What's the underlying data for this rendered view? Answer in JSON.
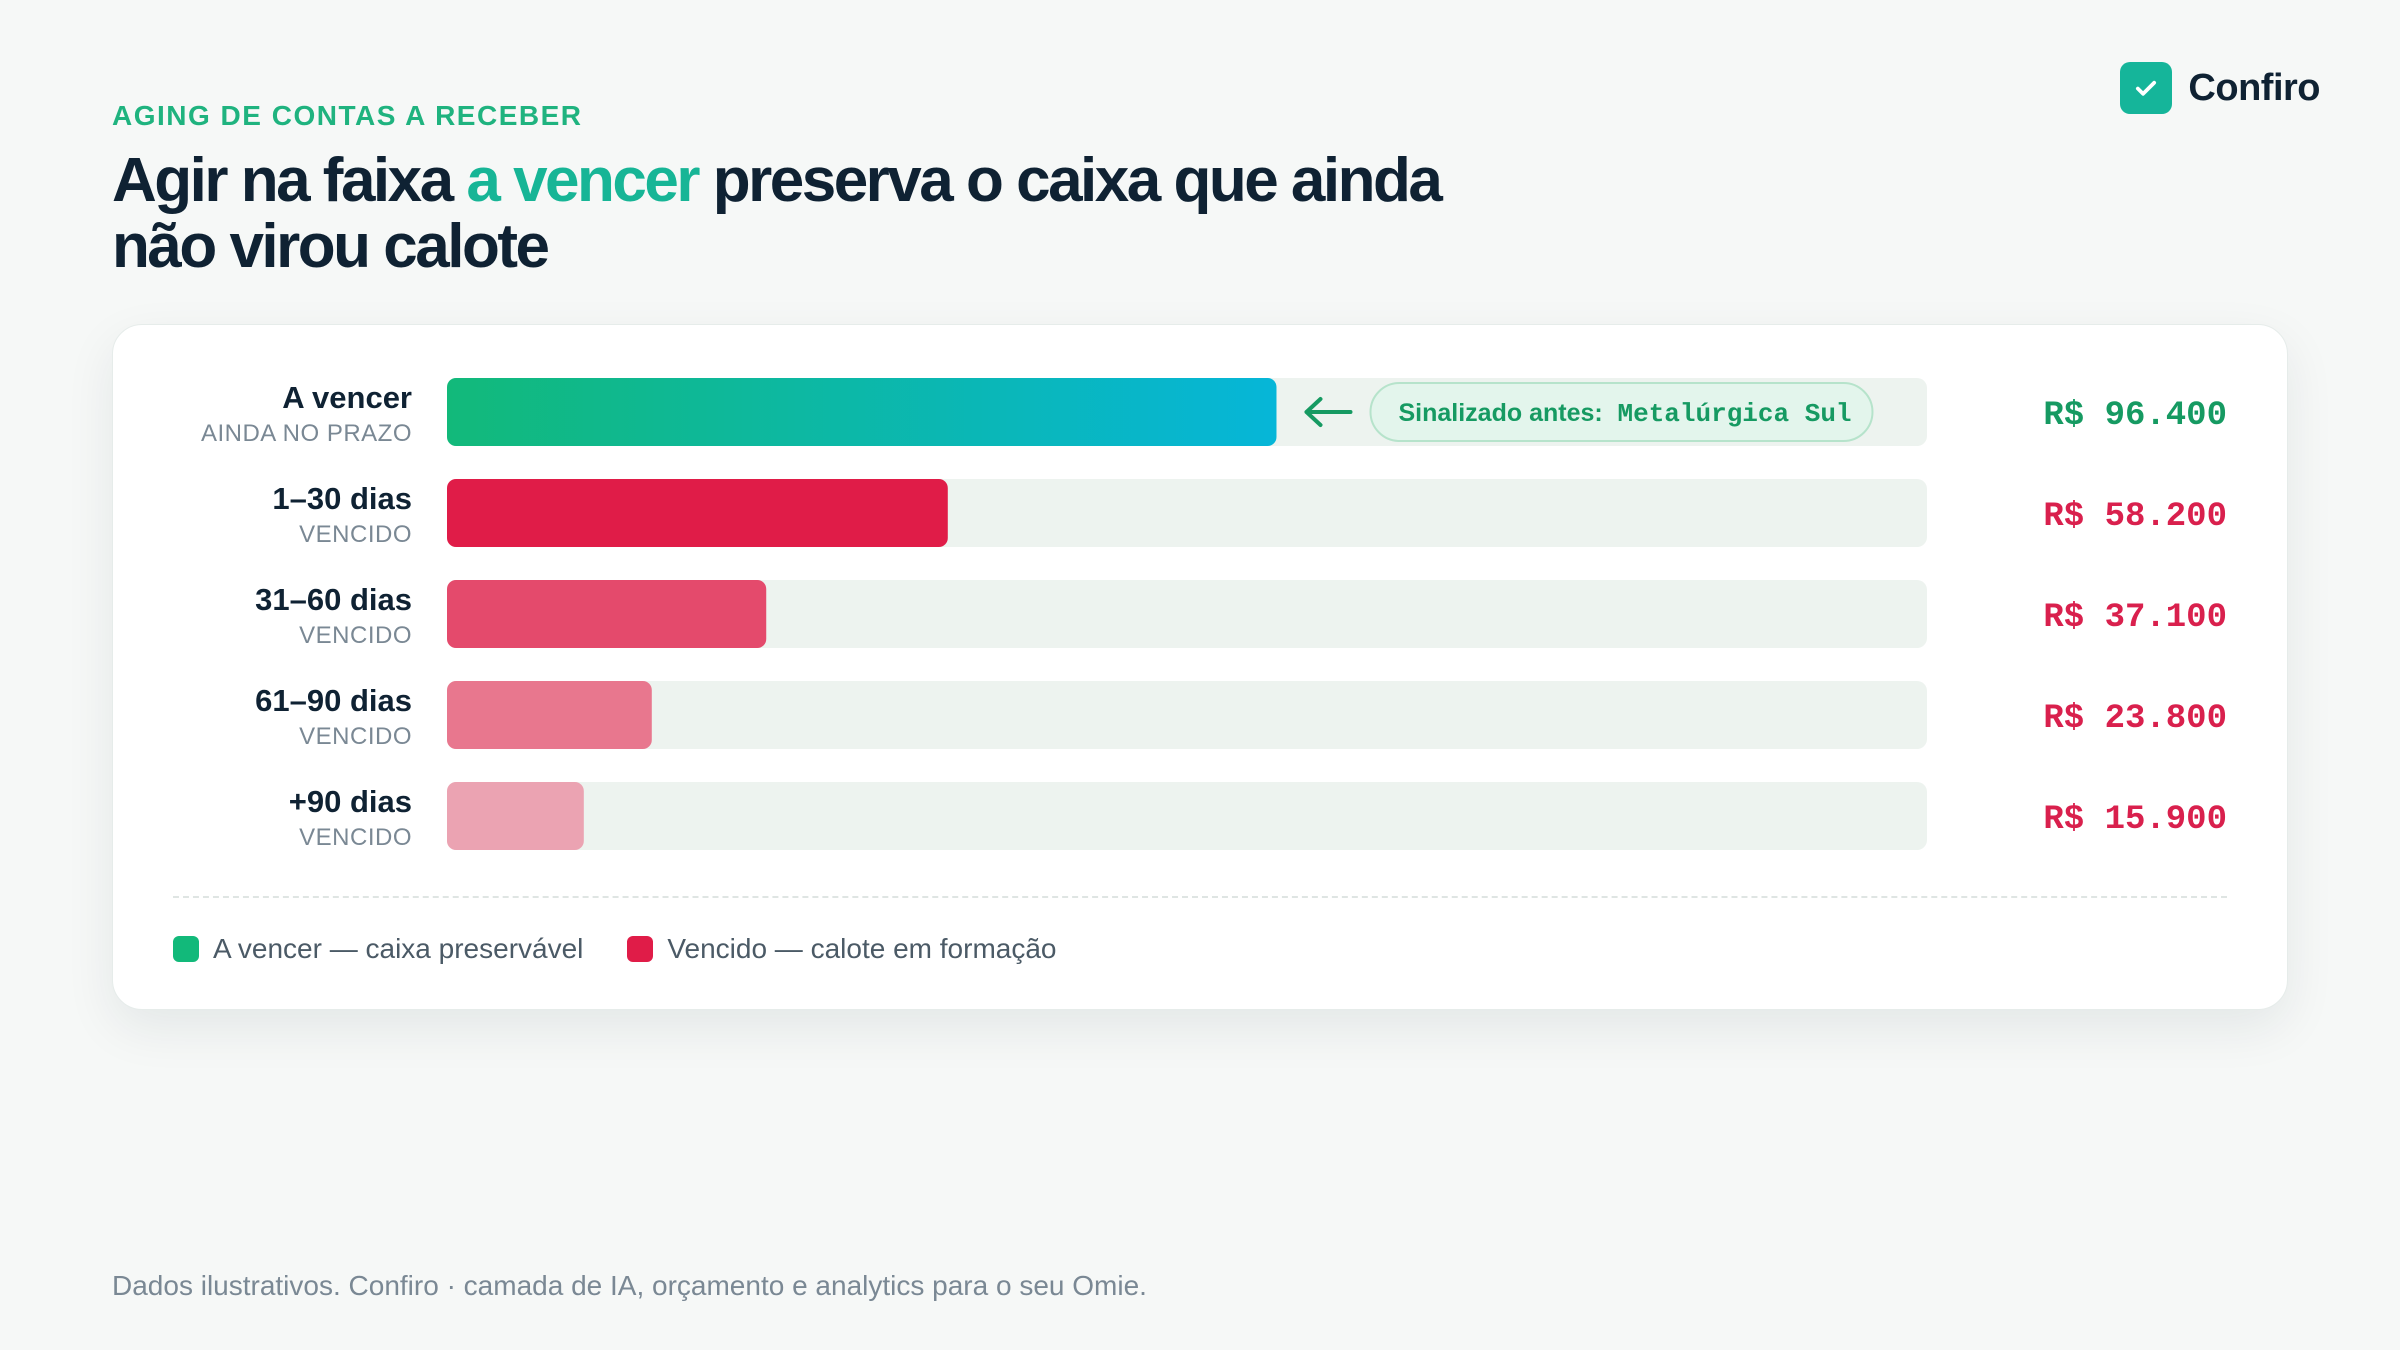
{
  "header": {
    "eyebrow": "AGING DE CONTAS A RECEBER",
    "title_pre": "Agir na faixa ",
    "title_highlight": "a vencer",
    "title_post": " preserva o caixa que ainda não virou calote"
  },
  "brand": {
    "name": "Confiro",
    "icon": "check-icon"
  },
  "chart_data": {
    "type": "bar",
    "orientation": "horizontal",
    "categories": [
      "A vencer",
      "1–30 dias",
      "31–60 dias",
      "61–90 dias",
      "+90 dias"
    ],
    "sublabels": [
      "AINDA NO PRAZO",
      "VENCIDO",
      "VENCIDO",
      "VENCIDO",
      "VENCIDO"
    ],
    "values": [
      96400,
      58200,
      37100,
      23800,
      15900
    ],
    "value_labels": [
      "R$ 96.400",
      "R$ 58.200",
      "R$ 37.100",
      "R$ 23.800",
      "R$ 15.900"
    ],
    "xlim": [
      0,
      172000
    ],
    "colors": [
      "#12b97a",
      "#e01c48",
      "#e44a6c",
      "#e8778e",
      "#eba3b2"
    ],
    "value_colors": [
      "#169a62",
      "#d9204d",
      "#d9204d",
      "#d9204d",
      "#d9204d"
    ],
    "track_color": "#edf3ef",
    "annotation": {
      "category": "A vencer",
      "label": "Sinalizado antes:",
      "code": "Metalúrgica Sul",
      "arrow": "arrow-left-icon"
    }
  },
  "legend": [
    {
      "label": "A vencer — caixa preservável",
      "color": "#12b97a"
    },
    {
      "label": "Vencido — calote em formação",
      "color": "#e01c48"
    }
  ],
  "footer": "Dados ilustrativos. Confiro · camada de IA, orçamento e analytics para o seu Omie."
}
